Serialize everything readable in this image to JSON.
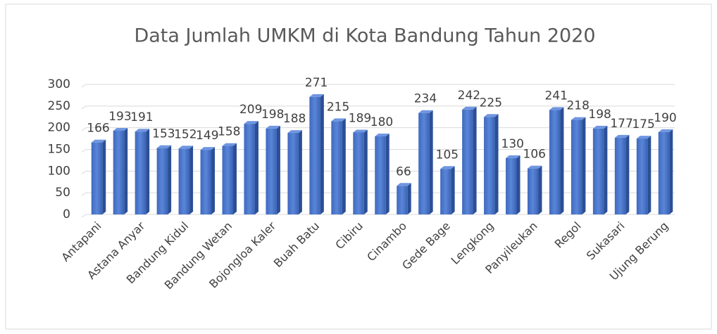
{
  "chart_data": {
    "type": "bar",
    "title": "Data Jumlah UMKM di Kota Bandung Tahun 2020",
    "categories": [
      "Antapani",
      null,
      "Astana Anyar",
      null,
      "Bandung Kidul",
      null,
      "Bandung Wetan",
      null,
      "Bojongloa Kaler",
      null,
      "Buah Batu",
      null,
      "Cibiru",
      null,
      "Cinambo",
      null,
      "Gede Bage",
      null,
      "Lengkong",
      null,
      "Panyileukan",
      null,
      "Regol",
      null,
      "Sukasari",
      null,
      "Ujung Berung"
    ],
    "values": [
      166,
      193,
      191,
      153,
      152,
      149,
      158,
      209,
      198,
      188,
      271,
      215,
      189,
      180,
      66,
      234,
      105,
      242,
      225,
      130,
      106,
      241,
      218,
      198,
      177,
      175,
      190
    ],
    "color": "#4472c4",
    "ylim": [
      0,
      300
    ],
    "yticks": [
      0,
      50,
      100,
      150,
      200,
      250,
      300
    ],
    "grid": true
  }
}
